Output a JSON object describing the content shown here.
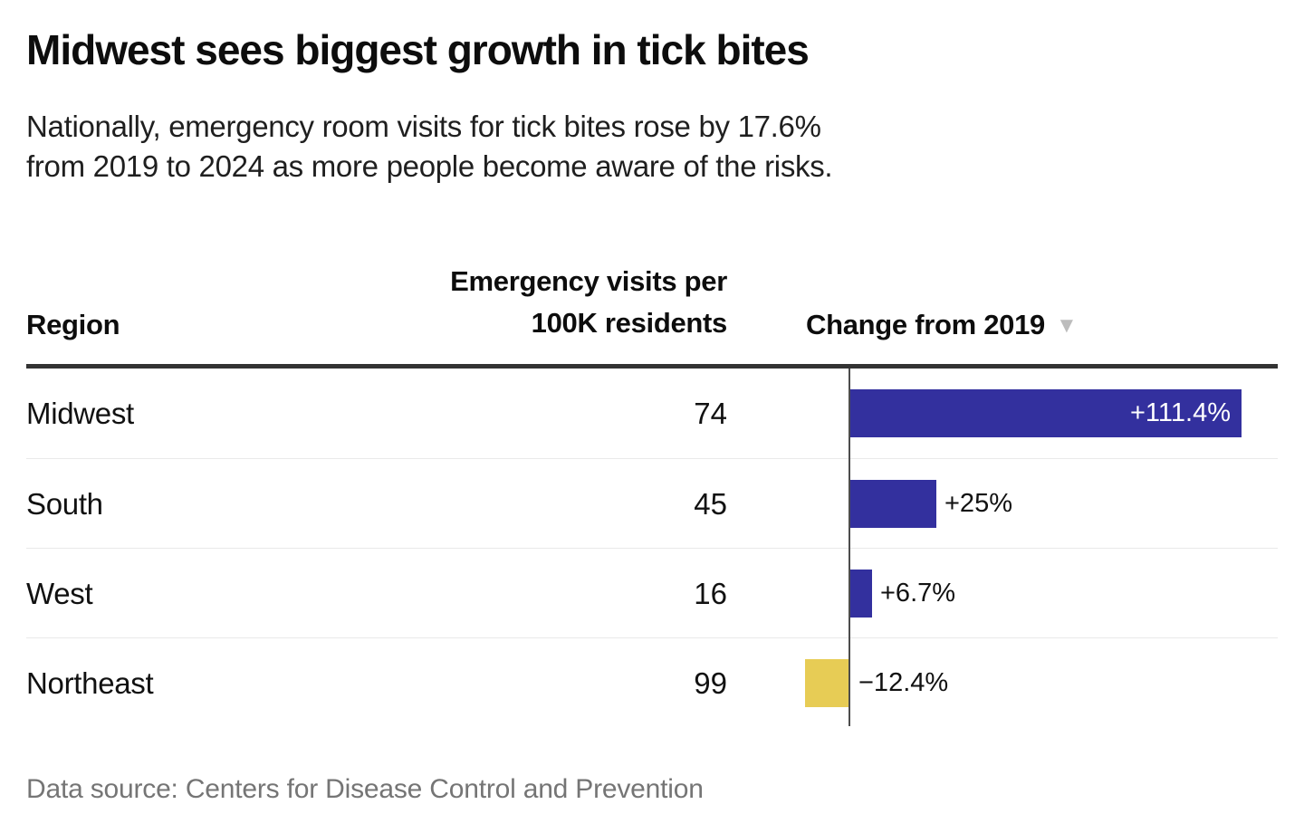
{
  "header": {
    "title": "Midwest sees biggest growth in tick bites",
    "subtitle_lines": [
      "Nationally, emergency room visits for tick bites rose by 17.6%",
      "from 2019 to 2024 as more people become aware of the risks."
    ]
  },
  "table": {
    "columns": {
      "region": "Region",
      "visits_line1": "Emergency visits per",
      "visits_line2": "100K residents",
      "change": "Change from 2019",
      "sort_icon": "▼"
    }
  },
  "chart_data": {
    "type": "bar",
    "title": "Midwest sees biggest growth in tick bites",
    "subtitle": "Nationally, emergency room visits for tick bites rose by 17.6% from 2019 to 2024 as more people become aware of the risks.",
    "categories": [
      "Midwest",
      "South",
      "West",
      "Northeast"
    ],
    "series": [
      {
        "name": "Emergency visits per 100K residents",
        "values": [
          74,
          45,
          16,
          99
        ]
      },
      {
        "name": "Change from 2019 (%)",
        "values": [
          111.4,
          25,
          6.7,
          -12.4
        ]
      }
    ],
    "rows": [
      {
        "region": "Midwest",
        "visits": "74",
        "change_pct": 111.4,
        "change_label": "+111.4%"
      },
      {
        "region": "South",
        "visits": "45",
        "change_pct": 25,
        "change_label": "+25%"
      },
      {
        "region": "West",
        "visits": "16",
        "change_pct": 6.7,
        "change_label": "+6.7%"
      },
      {
        "region": "Northeast",
        "visits": "99",
        "change_pct": -12.4,
        "change_label": "−12.4%"
      }
    ],
    "xlim": [
      -12.4,
      111.4
    ],
    "positive_color": "#33309e",
    "negative_color": "#e7cc55",
    "sort": "Change from 2019, descending",
    "legend": "none",
    "grid": "off"
  },
  "footer": {
    "source": "Data source: Centers for Disease Control and Prevention"
  }
}
